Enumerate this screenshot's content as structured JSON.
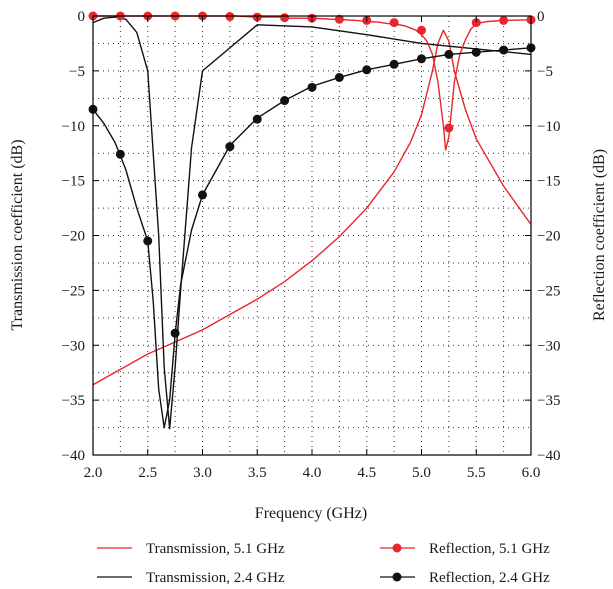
{
  "chart_data": {
    "type": "line",
    "xlabel": "Frequency (GHz)",
    "ylabel_left": "Transmission coefficient (dB)",
    "ylabel_right": "Reflection coefficient (dB)",
    "xlim": [
      2.0,
      6.0
    ],
    "ylim": [
      -40,
      0
    ],
    "x_ticks": [
      "2.0",
      "2.5",
      "3.0",
      "3.5",
      "4.0",
      "4.5",
      "5.0",
      "5.5",
      "6.0"
    ],
    "y_ticks": [
      "0",
      "-5",
      "-10",
      "-15",
      "-20",
      "-25",
      "-30",
      "-35",
      "-40"
    ],
    "grid": "dotted",
    "legend_position": "below",
    "series": [
      {
        "name": "Transmission, 5.1 GHz",
        "color": "#e8262b",
        "marker": "none",
        "x": [
          2.0,
          2.25,
          2.5,
          2.75,
          3.0,
          3.25,
          3.5,
          3.75,
          4.0,
          4.25,
          4.5,
          4.75,
          4.9,
          5.0,
          5.1,
          5.15,
          5.2,
          5.25,
          5.3,
          5.4,
          5.5,
          5.75,
          6.0
        ],
        "y": [
          -33.6,
          -32.2,
          -30.8,
          -29.7,
          -28.6,
          -27.2,
          -25.8,
          -24.2,
          -22.3,
          -20.1,
          -17.5,
          -14.2,
          -11.5,
          -9.0,
          -5.0,
          -2.5,
          -1.3,
          -2.3,
          -5.0,
          -8.5,
          -11.2,
          -15.5,
          -19.0
        ]
      },
      {
        "name": "Transmission, 2.4 GHz",
        "color": "#111111",
        "marker": "none",
        "x": [
          2.0,
          2.1,
          2.2,
          2.3,
          2.4,
          2.5,
          2.6,
          2.65,
          2.7,
          2.75,
          2.8,
          2.9,
          3.0,
          3.5,
          4.0,
          4.5,
          5.0,
          5.5,
          6.0
        ],
        "y": [
          -0.6,
          -0.2,
          -0.1,
          -0.3,
          -1.5,
          -5.0,
          -20.0,
          -32.0,
          -37.6,
          -32.0,
          -25.0,
          -12.0,
          -5.0,
          -0.8,
          -1.0,
          -1.7,
          -2.5,
          -3.0,
          -3.5
        ]
      },
      {
        "name": "Reflection, 5.1 GHz",
        "color": "#e8262b",
        "marker": "circle",
        "x": [
          2.0,
          2.1,
          2.2,
          2.3,
          2.4,
          2.5,
          2.6,
          2.7,
          2.8,
          2.9,
          3.0,
          3.1,
          3.2,
          3.3,
          3.4,
          3.5,
          3.6,
          3.7,
          3.8,
          3.9,
          4.0,
          4.1,
          4.2,
          4.3,
          4.4,
          4.5,
          4.6,
          4.7,
          4.8,
          4.85,
          4.9,
          4.95,
          5.0,
          5.05,
          5.1,
          5.15,
          5.2,
          5.22,
          5.25,
          5.28,
          5.3,
          5.35,
          5.4,
          5.45,
          5.5,
          5.6,
          5.75,
          6.0
        ],
        "y": [
          0,
          0,
          0,
          0,
          0,
          0,
          0,
          0,
          0,
          0,
          0,
          0,
          0,
          0,
          -0.05,
          -0.1,
          -0.1,
          -0.1,
          -0.2,
          -0.2,
          -0.2,
          -0.25,
          -0.3,
          -0.35,
          -0.4,
          -0.5,
          -0.55,
          -0.7,
          -0.8,
          -0.9,
          -1.1,
          -1.3,
          -1.7,
          -2.3,
          -3.5,
          -6.0,
          -10.0,
          -12.2,
          -11.0,
          -8.0,
          -6.0,
          -3.5,
          -2.2,
          -1.2,
          -0.7,
          -0.5,
          -0.4,
          -0.35
        ],
        "markers_x": [
          2.0,
          2.25,
          2.5,
          2.75,
          3.0,
          3.25,
          3.5,
          3.75,
          4.0,
          4.25,
          4.5,
          4.75,
          5.0,
          5.25,
          5.5,
          5.75,
          6.0
        ],
        "markers_y": [
          0,
          0,
          0,
          0,
          0,
          -0.05,
          -0.1,
          -0.15,
          -0.2,
          -0.3,
          -0.4,
          -0.6,
          -1.3,
          -10.2,
          -0.6,
          -0.4,
          -0.35
        ]
      },
      {
        "name": "Reflection, 2.4 GHz",
        "color": "#111111",
        "marker": "circle",
        "x": [
          2.0,
          2.1,
          2.2,
          2.3,
          2.4,
          2.5,
          2.55,
          2.6,
          2.65,
          2.7,
          2.75,
          2.8,
          2.9,
          3.0,
          3.25,
          3.5,
          3.75,
          4.0,
          4.25,
          4.5,
          4.75,
          5.0,
          5.25,
          5.5,
          5.75,
          6.0
        ],
        "y": [
          -8.5,
          -9.8,
          -11.5,
          -14.0,
          -17.5,
          -20.5,
          -26.0,
          -34.0,
          -37.5,
          -35.0,
          -29.0,
          -24.5,
          -19.5,
          -16.3,
          -11.8,
          -9.3,
          -7.7,
          -6.4,
          -5.6,
          -4.9,
          -4.4,
          -3.9,
          -3.5,
          -3.3,
          -3.1,
          -2.9
        ],
        "markers_x": [
          2.0,
          2.25,
          2.5,
          2.75,
          3.0,
          3.25,
          3.5,
          3.75,
          4.0,
          4.25,
          4.5,
          4.75,
          5.0,
          5.25,
          5.5,
          5.75,
          6.0
        ],
        "markers_y": [
          -8.5,
          -12.6,
          -20.5,
          -28.9,
          -16.3,
          -11.9,
          -9.4,
          -7.7,
          -6.5,
          -5.6,
          -4.9,
          -4.4,
          -3.9,
          -3.5,
          -3.3,
          -3.1,
          -2.9
        ]
      }
    ]
  }
}
